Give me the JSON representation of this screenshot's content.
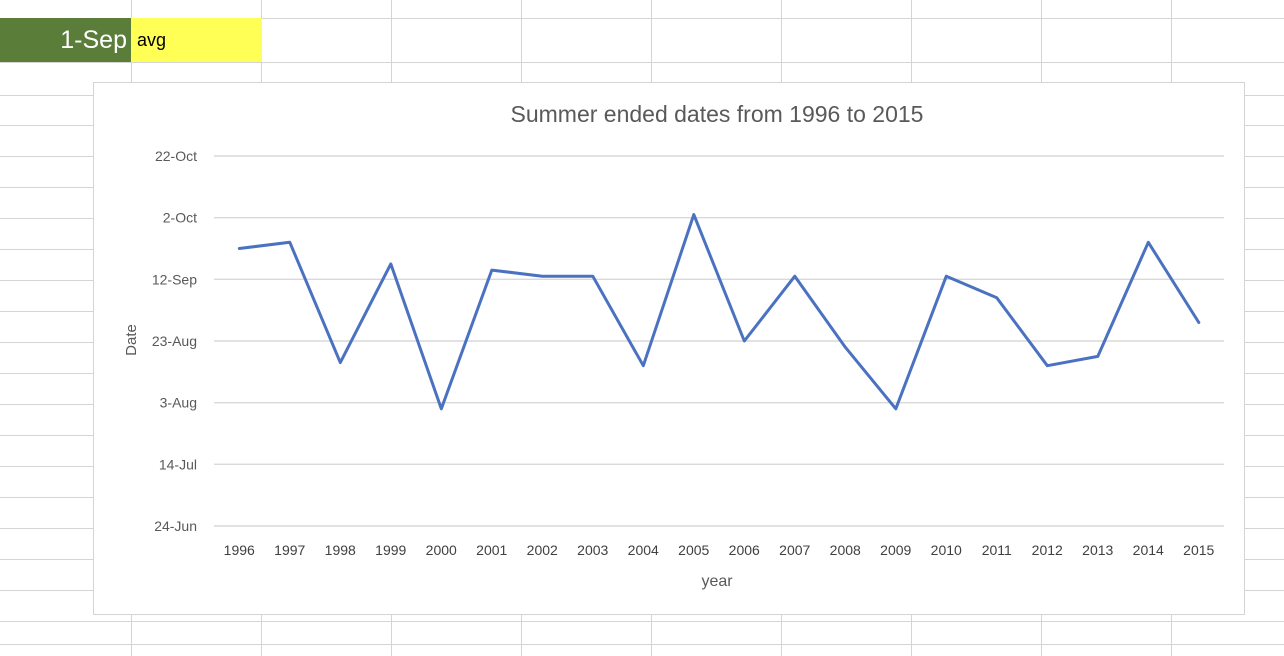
{
  "sheet": {
    "date_cell": "1-Sep",
    "avg_cell": "avg"
  },
  "colors": {
    "date_cell_bg": "#5b7d3a",
    "avg_cell_bg": "#ffff55",
    "series_line": "#4a72c0",
    "gridline": "#d9d9d9"
  },
  "chart_data": {
    "type": "line",
    "title": "Summer ended dates from 1996 to 2015",
    "xlabel": "year",
    "ylabel": "Date",
    "categories": [
      "1996",
      "1997",
      "1998",
      "1999",
      "2000",
      "2001",
      "2002",
      "2003",
      "2004",
      "2005",
      "2006",
      "2007",
      "2008",
      "2009",
      "2010",
      "2011",
      "2012",
      "2013",
      "2014",
      "2015"
    ],
    "series": [
      {
        "values": [
          "Sep 22",
          "Sep 24",
          "Aug 16",
          "Sep 17",
          "Aug 1",
          "Sep 15",
          "Sep 13",
          "Sep 13",
          "Aug 15",
          "Oct 3",
          "Aug 23",
          "Sep 13",
          "Aug 21",
          "Aug 1",
          "Sep 13",
          "Sep 6",
          "Aug 15",
          "Aug 18",
          "Sep 24",
          "Aug 29"
        ]
      }
    ],
    "y_ticks": [
      "24-Jun",
      "14-Jul",
      "3-Aug",
      "23-Aug",
      "12-Sep",
      "2-Oct",
      "22-Oct"
    ],
    "ylim": [
      "24-Jun",
      "22-Oct"
    ],
    "grid": true,
    "legend": "none"
  }
}
